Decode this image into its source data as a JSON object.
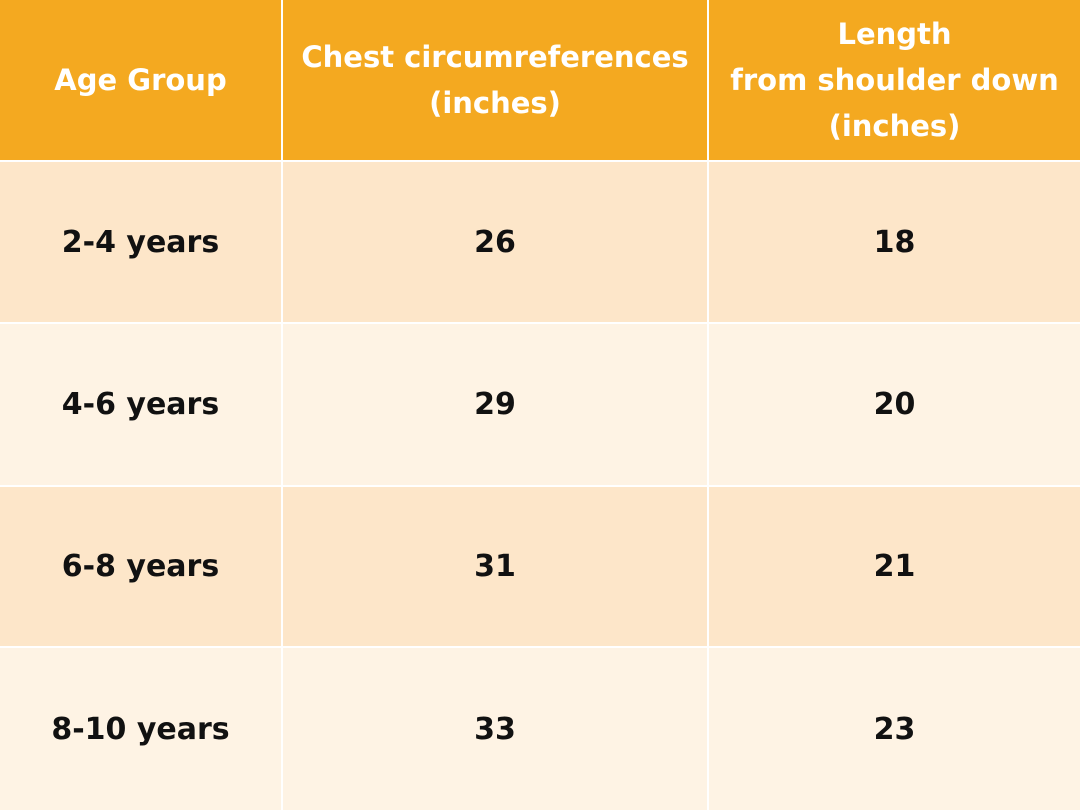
{
  "table": {
    "header": [
      [
        "Age Group"
      ],
      [
        "Chest circumreferences",
        "(inches)"
      ],
      [
        "Length",
        "from shoulder down",
        "(inches)"
      ]
    ],
    "rows": [
      [
        "2-4 years",
        26,
        18
      ],
      [
        "4-6 years",
        29,
        20
      ],
      [
        "6-8 years",
        31,
        21
      ],
      [
        "8-10 years",
        33,
        23
      ]
    ]
  }
}
